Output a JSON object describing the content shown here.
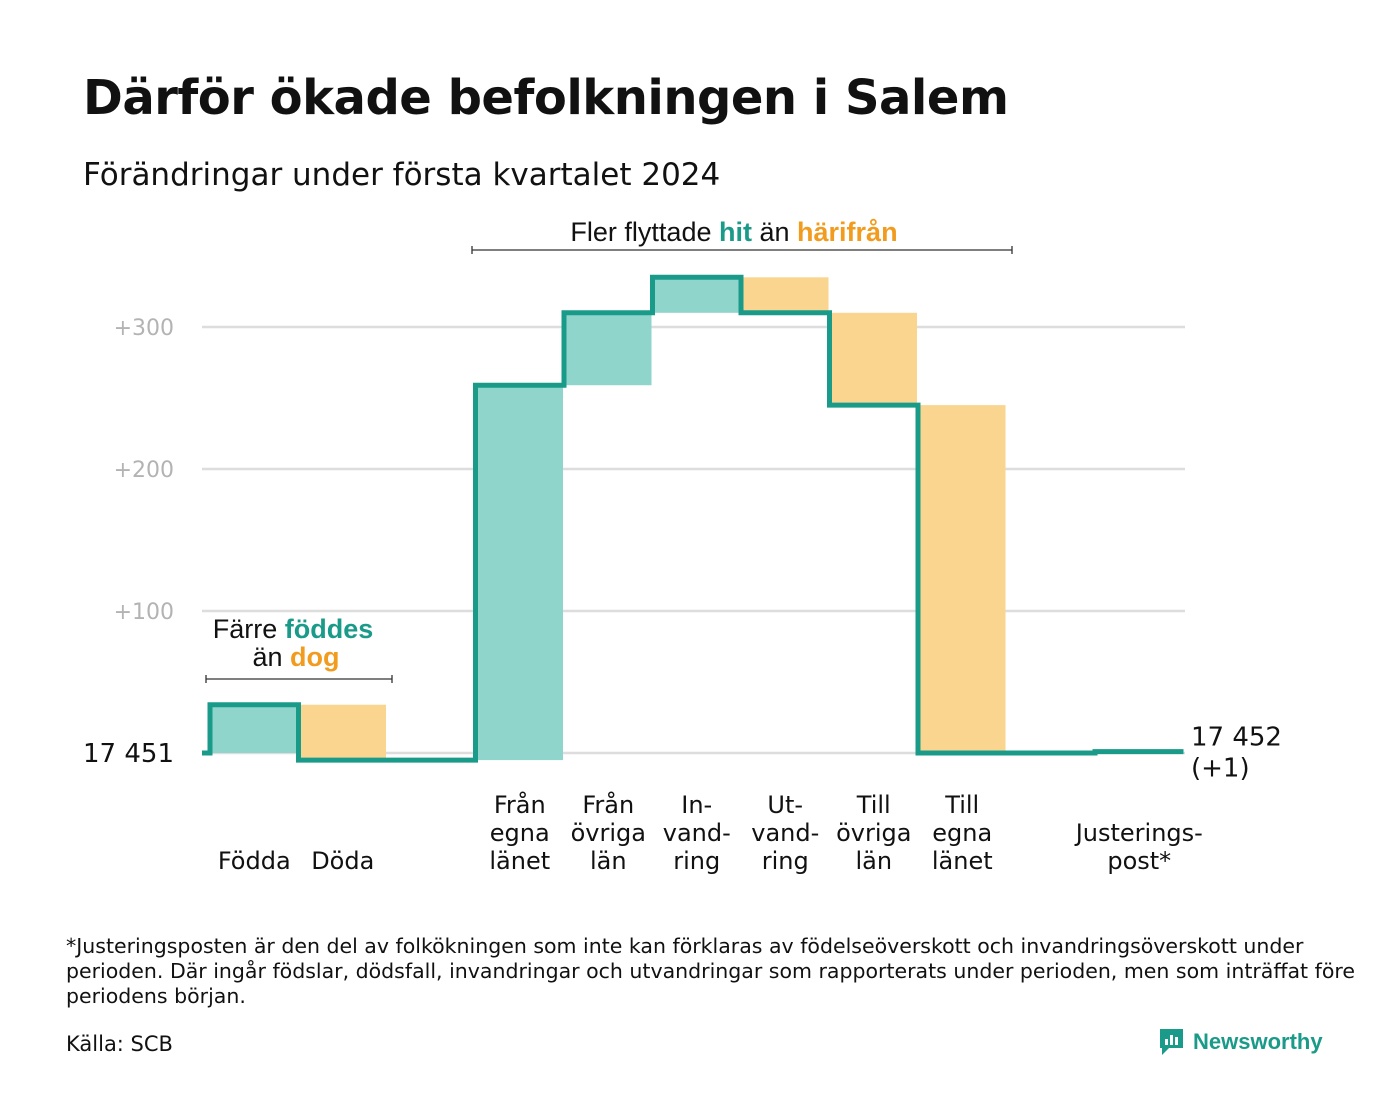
{
  "title": "Därför ökade befolkningen i Salem",
  "subtitle": "Förändringar under första kvartalet 2024",
  "colors": {
    "increase": "#8fd5cc",
    "decrease": "#fad58f",
    "line": "#1a9a89",
    "accent_orange": "#f29c1f",
    "grid": "#dddddd",
    "tick_text": "#b3b3b3"
  },
  "chart_data": {
    "type": "waterfall",
    "start_label": "17  451",
    "start_value": 17451,
    "end_label": "17 452",
    "end_change_label": "(+1)",
    "end_value": 17452,
    "yticks": [
      {
        "value": 300,
        "label": "+300"
      },
      {
        "value": 200,
        "label": "+200"
      },
      {
        "value": 100,
        "label": "+100"
      }
    ],
    "ylim": [
      -10,
      330
    ],
    "steps": [
      {
        "label": [
          "Födda"
        ],
        "change": 34,
        "type": "increase"
      },
      {
        "label": [
          "Döda"
        ],
        "change": -39,
        "type": "decrease"
      },
      {
        "label": [],
        "change": 0,
        "type": "gap"
      },
      {
        "label": [
          "Från",
          "egna",
          "länet"
        ],
        "change": 264,
        "type": "increase"
      },
      {
        "label": [
          "Från",
          "övriga",
          "län"
        ],
        "change": 51,
        "type": "increase"
      },
      {
        "label": [
          "In-",
          "vand-",
          "ring"
        ],
        "change": 25,
        "type": "increase"
      },
      {
        "label": [
          "Ut-",
          "vand-",
          "ring"
        ],
        "change": -25,
        "type": "decrease"
      },
      {
        "label": [
          "Till",
          "övriga",
          "län"
        ],
        "change": -65,
        "type": "decrease"
      },
      {
        "label": [
          "Till",
          "egna",
          "länet"
        ],
        "change": -245,
        "type": "decrease"
      },
      {
        "label": [],
        "change": 0,
        "type": "gap"
      },
      {
        "label": [
          "Justerings-",
          "post*"
        ],
        "change": 1,
        "type": "adjustment"
      }
    ],
    "annotations": [
      {
        "parts": [
          {
            "text": "Färre ",
            "style": "plain"
          },
          {
            "text": "föddes",
            "style": "increase"
          }
        ],
        "parts2": [
          {
            "text": "än ",
            "style": "plain"
          },
          {
            "text": "dog",
            "style": "decrease"
          }
        ]
      },
      {
        "parts": [
          {
            "text": "Fler flyttade ",
            "style": "plain"
          },
          {
            "text": "hit",
            "style": "increase"
          },
          {
            "text": " än ",
            "style": "plain"
          },
          {
            "text": "härifrån",
            "style": "decrease"
          }
        ]
      }
    ]
  },
  "footnote": "*Justeringsposten är den del av folkökningen som inte kan förklaras av födelseöverskott och invandringsöverskott under perioden. Där ingår födslar, dödsfall, invandringar och utvandringar som rapporterats under perioden, men som inträffat före periodens början.",
  "source": "Källa: SCB",
  "brand": {
    "name": "Newsworthy",
    "icon": "newsworthy-logo-icon"
  }
}
